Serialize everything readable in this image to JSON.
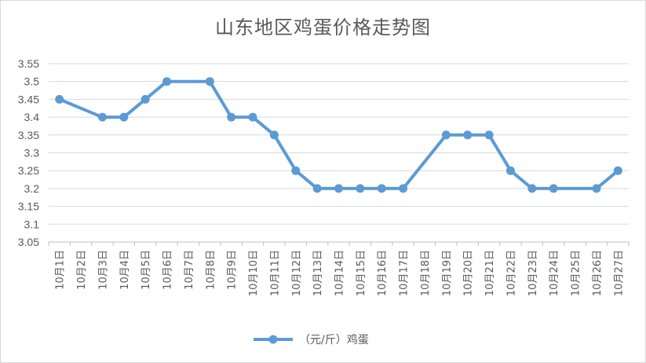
{
  "chart_data": {
    "type": "line",
    "title": "山东地区鸡蛋价格走势图",
    "categories": [
      "10月1日",
      "10月2日",
      "10月3日",
      "10月4日",
      "10月5日",
      "10月6日",
      "10月7日",
      "10月8日",
      "10月9日",
      "10月10日",
      "10月11日",
      "10月12日",
      "10月13日",
      "10月14日",
      "10月15日",
      "10月16日",
      "10月17日",
      "10月18日",
      "10月19日",
      "10月20日",
      "10月21日",
      "10月22日",
      "10月23日",
      "10月24日",
      "10月25日",
      "10月26日",
      "10月27日"
    ],
    "series": [
      {
        "name": "（元/斤）鸡蛋",
        "color": "#5b9bd5",
        "values": [
          3.45,
          null,
          3.4,
          3.4,
          3.45,
          3.5,
          null,
          3.5,
          3.4,
          3.4,
          3.35,
          3.25,
          3.2,
          3.2,
          3.2,
          3.2,
          3.2,
          null,
          3.35,
          3.35,
          3.35,
          3.25,
          3.2,
          3.2,
          null,
          3.2,
          3.25
        ]
      }
    ],
    "ylim": [
      3.05,
      3.55
    ],
    "yticks": [
      "3.05",
      "3.1",
      "3.15",
      "3.2",
      "3.25",
      "3.3",
      "3.35",
      "3.4",
      "3.45",
      "3.5",
      "3.55"
    ],
    "grid": true,
    "legend_position": "bottom",
    "xlabel": "",
    "ylabel": ""
  }
}
